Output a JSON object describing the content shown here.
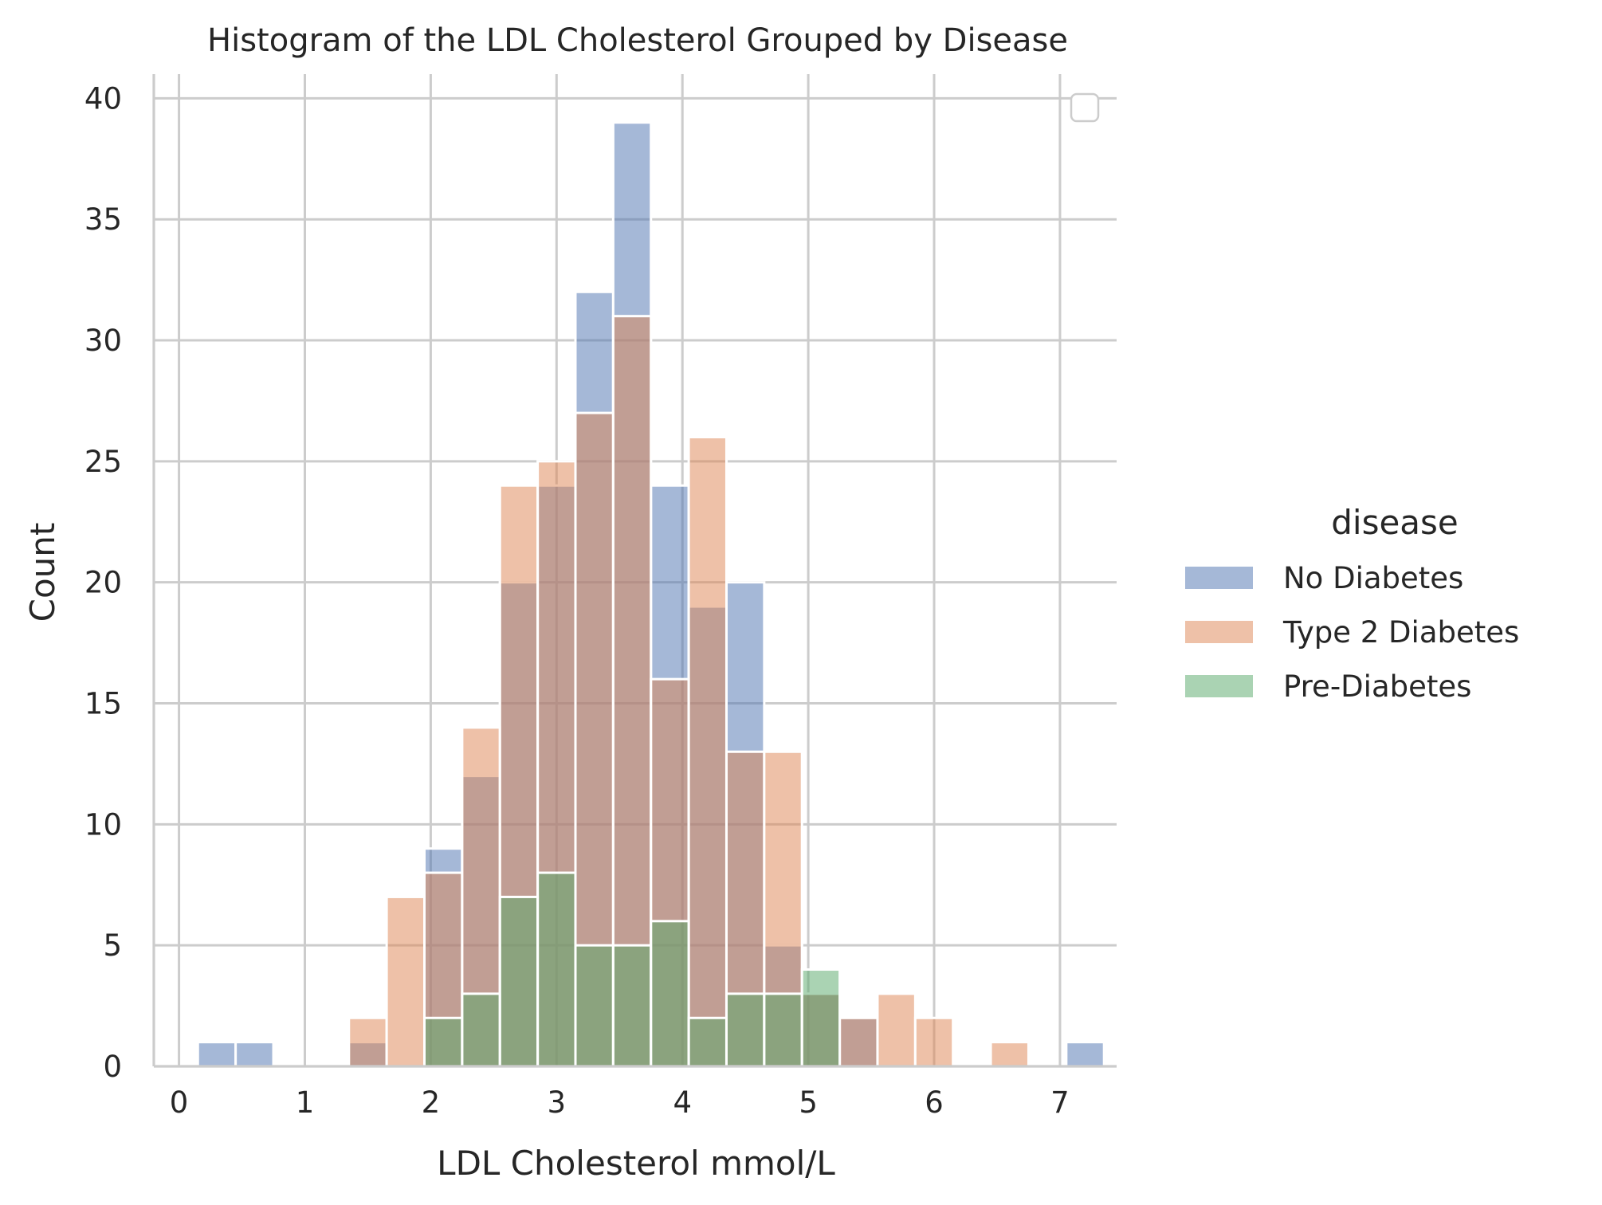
{
  "chart_data": {
    "type": "bar",
    "title": "Histogram of the LDL Cholesterol Grouped by Disease",
    "xlabel": "LDL Cholesterol mmol/L",
    "ylabel": "Count",
    "xlim": [
      -0.2,
      7.45
    ],
    "ylim": [
      0,
      41
    ],
    "xticks": [
      "0",
      "1",
      "2",
      "3",
      "4",
      "5",
      "6",
      "7"
    ],
    "yticks": [
      "0",
      "5",
      "10",
      "15",
      "20",
      "25",
      "30",
      "35",
      "40"
    ],
    "grid": true,
    "bin_start": 0.15,
    "bin_width": 0.3,
    "legend": {
      "title": "disease",
      "placement": "right",
      "entries": [
        "No Diabetes",
        "Type 2 Diabetes",
        "Pre-Diabetes"
      ]
    },
    "series": [
      {
        "name": "No Diabetes",
        "color": "#4c72b0",
        "values": [
          1,
          1,
          0,
          0,
          1,
          0,
          9,
          12,
          20,
          24,
          32,
          39,
          24,
          19,
          20,
          5,
          3,
          2,
          0,
          0,
          0,
          0,
          0,
          1
        ]
      },
      {
        "name": "Type 2 Diabetes",
        "color": "#dd8452",
        "values": [
          0,
          0,
          0,
          0,
          2,
          7,
          8,
          14,
          24,
          25,
          27,
          31,
          16,
          26,
          13,
          13,
          3,
          2,
          3,
          2,
          0,
          1,
          0,
          0
        ]
      },
      {
        "name": "Pre-Diabetes",
        "color": "#55a868",
        "values": [
          0,
          0,
          0,
          0,
          0,
          0,
          2,
          3,
          7,
          8,
          5,
          5,
          6,
          2,
          3,
          3,
          4,
          0,
          0,
          0,
          0,
          0,
          0,
          0
        ]
      }
    ]
  }
}
